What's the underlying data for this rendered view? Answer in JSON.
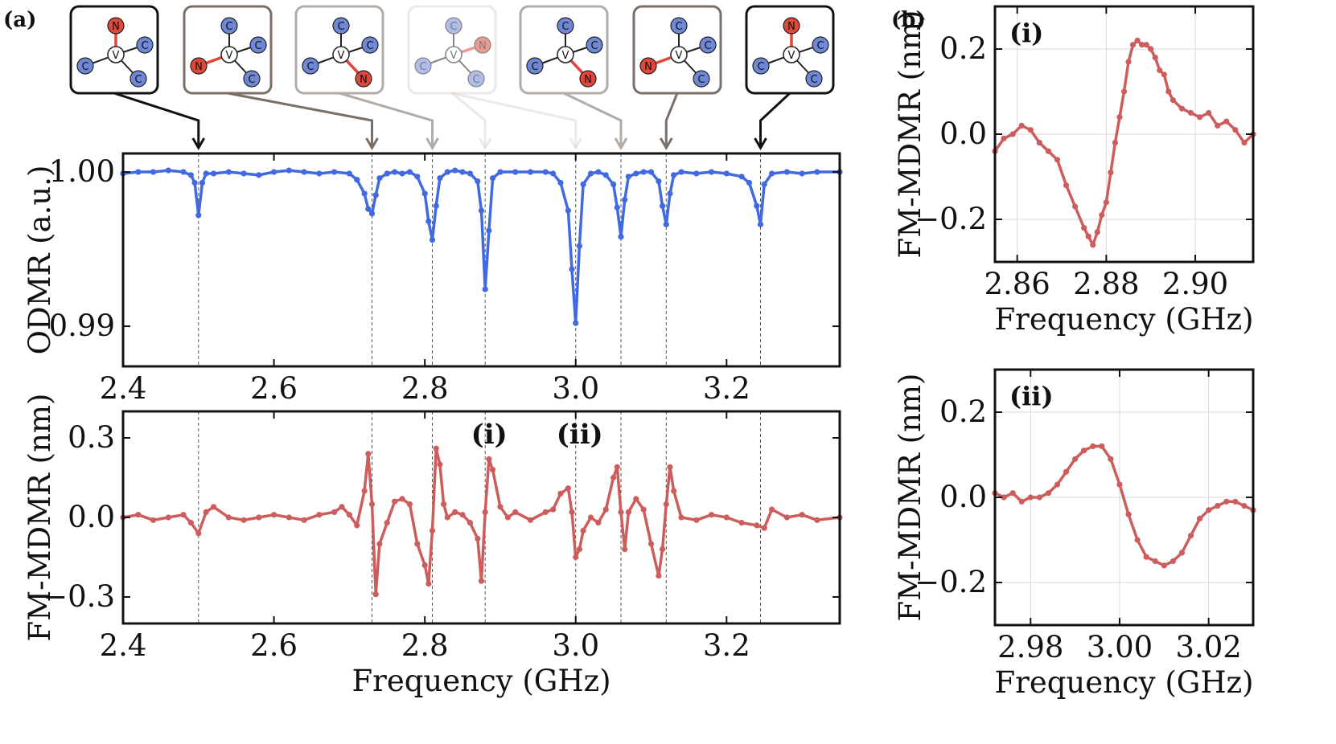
{
  "panel_labels": {
    "a": "(a)",
    "b": "(b)"
  },
  "peak_labels": [
    "(i)",
    "(ii)"
  ],
  "colors": {
    "odmr": "#4169e1",
    "mdmr": "#cd5c5c",
    "axes": "#111111",
    "grid": "#d9d9d9",
    "carbon_atom": "#6f88d6",
    "nitrogen_atom": "#e0463a",
    "vacancy_atom": "#ffffff"
  },
  "nv_orientation_boxes": [
    {
      "n_position": "top",
      "frame_color": "#111111",
      "fill": "#ffffff",
      "opacity": 1.0
    },
    {
      "n_position": "left",
      "frame_color": "#7a6e66",
      "fill": "#ffffff",
      "opacity": 1.0
    },
    {
      "n_position": "bottom-right",
      "frame_color": "#b3aba5",
      "fill": "#ffffff",
      "opacity": 1.0
    },
    {
      "n_position": "right",
      "frame_color": "#dcd7d3",
      "fill": "#ffffff",
      "opacity": 0.55
    },
    {
      "n_position": "bottom-right",
      "frame_color": "#b3aba5",
      "fill": "#ffffff",
      "opacity": 1.0
    },
    {
      "n_position": "left",
      "frame_color": "#7a6e66",
      "fill": "#ffffff",
      "opacity": 1.0
    },
    {
      "n_position": "top",
      "frame_color": "#111111",
      "fill": "#ffffff",
      "opacity": 1.0
    }
  ],
  "atom_labels": {
    "carbon": "C",
    "nitrogen": "N",
    "vacancy": "V"
  },
  "chart_data": [
    {
      "id": "odmr",
      "type": "line",
      "title": "",
      "xlabel": "",
      "ylabel": "ODMR (a.u.)",
      "xlim": [
        2.4,
        3.35
      ],
      "ylim": [
        0.9874,
        1.0012
      ],
      "xticks": [
        2.4,
        2.6,
        2.8,
        3.0,
        3.2
      ],
      "xtick_labels": [
        "2.4",
        "2.6",
        "2.8",
        "3.0",
        "3.2"
      ],
      "yticks": [
        0.99,
        1.0
      ],
      "ytick_labels": [
        "0.99",
        "1.00"
      ],
      "grid": false,
      "resonance_lines_GHz": [
        2.5,
        2.73,
        2.81,
        2.88,
        3.0,
        3.06,
        3.12,
        3.245
      ],
      "series": [
        {
          "color": "#4169e1",
          "markers": true,
          "x": [
            2.4,
            2.42,
            2.44,
            2.46,
            2.48,
            2.49,
            2.495,
            2.5,
            2.505,
            2.51,
            2.52,
            2.54,
            2.56,
            2.58,
            2.6,
            2.62,
            2.64,
            2.66,
            2.68,
            2.7,
            2.71,
            2.72,
            2.725,
            2.73,
            2.735,
            2.74,
            2.75,
            2.76,
            2.77,
            2.78,
            2.79,
            2.8,
            2.805,
            2.81,
            2.815,
            2.82,
            2.83,
            2.84,
            2.85,
            2.86,
            2.87,
            2.875,
            2.88,
            2.885,
            2.89,
            2.9,
            2.92,
            2.94,
            2.96,
            2.97,
            2.98,
            2.99,
            2.995,
            3.0,
            3.005,
            3.01,
            3.02,
            3.03,
            3.04,
            3.05,
            3.055,
            3.06,
            3.065,
            3.07,
            3.08,
            3.09,
            3.1,
            3.11,
            3.115,
            3.12,
            3.125,
            3.13,
            3.14,
            3.16,
            3.18,
            3.2,
            3.22,
            3.23,
            3.24,
            3.245,
            3.25,
            3.26,
            3.28,
            3.3,
            3.32,
            3.35
          ],
          "y": [
            0.9999,
            1.0,
            1.0,
            1.0001,
            1.0,
            0.9998,
            0.9993,
            0.9972,
            0.9993,
            0.9999,
            0.9999,
            1.0,
            0.9999,
            0.9998,
            1.0,
            1.0001,
            1.0,
            0.9999,
            1.0,
            0.9999,
            0.9995,
            0.9986,
            0.9976,
            0.9973,
            0.9985,
            0.9996,
            0.9999,
            1.0,
            0.9999,
            1.0,
            0.9997,
            0.9986,
            0.9968,
            0.9956,
            0.9978,
            0.9996,
            1.0,
            1.0001,
            1.0,
            0.9999,
            0.9994,
            0.9975,
            0.9924,
            0.9962,
            0.9996,
            1.0,
            1.0,
            1.0,
            1.0,
            0.9999,
            0.9993,
            0.9975,
            0.9937,
            0.9902,
            0.9952,
            0.9992,
            0.9999,
            1.0,
            0.9998,
            0.9992,
            0.9977,
            0.9958,
            0.9982,
            0.9997,
            0.9999,
            1.0,
            1.0,
            0.9994,
            0.9978,
            0.9966,
            0.9986,
            0.9998,
            1.0,
            0.9999,
            1.0,
            0.9999,
            0.9997,
            0.9993,
            0.9978,
            0.9966,
            0.9992,
            0.9999,
            1.0,
            0.9999,
            1.0,
            1.0
          ]
        }
      ]
    },
    {
      "id": "fm-mdmr",
      "type": "line",
      "title": "",
      "xlabel": "Frequency (GHz)",
      "ylabel": "FM-MDMR (nm)",
      "xlim": [
        2.4,
        3.35
      ],
      "ylim": [
        -0.4,
        0.4
      ],
      "xticks": [
        2.4,
        2.6,
        2.8,
        3.0,
        3.2
      ],
      "xtick_labels": [
        "2.4",
        "2.6",
        "2.8",
        "3.0",
        "3.2"
      ],
      "yticks": [
        -0.3,
        0.0,
        0.3
      ],
      "ytick_labels": [
        "−0.3",
        "0.0",
        "0.3"
      ],
      "grid": false,
      "annotations": [
        {
          "text": "(i)",
          "x": 2.88
        },
        {
          "text": "(ii)",
          "x": 3.0
        }
      ],
      "resonance_lines_GHz": [
        2.5,
        2.73,
        2.81,
        2.88,
        3.0,
        3.06,
        3.12,
        3.245
      ],
      "series": [
        {
          "color": "#cd5c5c",
          "markers": true,
          "x": [
            2.4,
            2.42,
            2.44,
            2.46,
            2.48,
            2.49,
            2.5,
            2.51,
            2.52,
            2.54,
            2.56,
            2.58,
            2.6,
            2.62,
            2.64,
            2.66,
            2.68,
            2.69,
            2.7,
            2.71,
            2.72,
            2.725,
            2.73,
            2.735,
            2.74,
            2.75,
            2.76,
            2.77,
            2.78,
            2.79,
            2.8,
            2.805,
            2.81,
            2.815,
            2.82,
            2.825,
            2.83,
            2.84,
            2.85,
            2.86,
            2.87,
            2.875,
            2.88,
            2.885,
            2.89,
            2.9,
            2.91,
            2.92,
            2.94,
            2.96,
            2.97,
            2.98,
            2.99,
            2.995,
            3.0,
            3.005,
            3.01,
            3.02,
            3.03,
            3.04,
            3.05,
            3.055,
            3.06,
            3.065,
            3.07,
            3.08,
            3.09,
            3.1,
            3.11,
            3.115,
            3.12,
            3.125,
            3.13,
            3.14,
            3.16,
            3.18,
            3.2,
            3.22,
            3.24,
            3.25,
            3.26,
            3.28,
            3.3,
            3.32,
            3.35
          ],
          "y": [
            0.0,
            0.01,
            -0.01,
            0.0,
            0.01,
            -0.02,
            -0.06,
            0.02,
            0.04,
            0.0,
            -0.01,
            0.0,
            0.01,
            0.0,
            -0.01,
            0.01,
            0.02,
            0.04,
            0.01,
            -0.03,
            0.1,
            0.24,
            0.05,
            -0.29,
            -0.1,
            -0.02,
            0.06,
            0.07,
            0.05,
            -0.1,
            -0.18,
            -0.25,
            -0.05,
            0.26,
            0.2,
            0.05,
            0.0,
            0.02,
            0.01,
            -0.02,
            -0.08,
            -0.24,
            0.02,
            0.22,
            0.18,
            0.04,
            0.0,
            0.02,
            -0.01,
            0.02,
            0.03,
            0.09,
            0.11,
            0.02,
            -0.15,
            -0.12,
            -0.05,
            0.0,
            -0.02,
            0.03,
            0.15,
            0.19,
            0.02,
            -0.12,
            0.02,
            0.07,
            0.03,
            -0.1,
            -0.22,
            -0.12,
            0.05,
            0.19,
            0.1,
            0.0,
            -0.01,
            0.01,
            0.0,
            -0.02,
            -0.03,
            -0.04,
            0.03,
            0.0,
            0.01,
            -0.01,
            0.0
          ]
        }
      ]
    },
    {
      "id": "inset-i",
      "type": "line",
      "title": "",
      "label": "(i)",
      "xlabel": "Frequency (GHz)",
      "ylabel": "FM-MDMR (nm)",
      "xlim": [
        2.855,
        2.913
      ],
      "ylim": [
        -0.3,
        0.3
      ],
      "xticks": [
        2.86,
        2.88,
        2.9
      ],
      "xtick_labels": [
        "2.86",
        "2.88",
        "2.90"
      ],
      "yticks": [
        -0.2,
        0.0,
        0.2
      ],
      "ytick_labels": [
        "−0.2",
        "0.0",
        "0.2"
      ],
      "grid": true,
      "series": [
        {
          "color": "#cd5c5c",
          "markers": true,
          "x": [
            2.855,
            2.857,
            2.859,
            2.861,
            2.863,
            2.865,
            2.867,
            2.869,
            2.871,
            2.873,
            2.875,
            2.876,
            2.877,
            2.878,
            2.879,
            2.88,
            2.881,
            2.882,
            2.883,
            2.884,
            2.885,
            2.886,
            2.887,
            2.888,
            2.889,
            2.89,
            2.891,
            2.892,
            2.893,
            2.894,
            2.895,
            2.897,
            2.899,
            2.901,
            2.903,
            2.905,
            2.907,
            2.909,
            2.911,
            2.913
          ],
          "y": [
            -0.04,
            -0.01,
            0.0,
            0.02,
            0.01,
            -0.02,
            -0.04,
            -0.06,
            -0.12,
            -0.17,
            -0.22,
            -0.24,
            -0.26,
            -0.23,
            -0.19,
            -0.16,
            -0.09,
            -0.02,
            0.04,
            0.1,
            0.17,
            0.21,
            0.22,
            0.21,
            0.21,
            0.2,
            0.18,
            0.15,
            0.14,
            0.1,
            0.08,
            0.06,
            0.05,
            0.04,
            0.05,
            0.02,
            0.03,
            0.01,
            -0.02,
            0.0
          ]
        }
      ]
    },
    {
      "id": "inset-ii",
      "type": "line",
      "title": "",
      "label": "(ii)",
      "xlabel": "Frequency (GHz)",
      "ylabel": "FM-MDMR (nm)",
      "xlim": [
        2.972,
        3.03
      ],
      "ylim": [
        -0.3,
        0.3
      ],
      "xticks": [
        2.98,
        3.0,
        3.02
      ],
      "xtick_labels": [
        "2.98",
        "3.00",
        "3.02"
      ],
      "yticks": [
        -0.2,
        0.0,
        0.2
      ],
      "ytick_labels": [
        "−0.2",
        "0.0",
        "0.2"
      ],
      "grid": true,
      "series": [
        {
          "color": "#cd5c5c",
          "markers": true,
          "x": [
            2.972,
            2.974,
            2.976,
            2.978,
            2.98,
            2.982,
            2.984,
            2.986,
            2.988,
            2.99,
            2.992,
            2.994,
            2.996,
            2.998,
            3.0,
            3.002,
            3.004,
            3.006,
            3.008,
            3.01,
            3.012,
            3.014,
            3.016,
            3.018,
            3.02,
            3.022,
            3.024,
            3.026,
            3.028,
            3.03
          ],
          "y": [
            0.01,
            0.0,
            0.01,
            -0.01,
            0.0,
            0.0,
            0.01,
            0.03,
            0.06,
            0.09,
            0.11,
            0.12,
            0.12,
            0.09,
            0.03,
            -0.04,
            -0.1,
            -0.14,
            -0.15,
            -0.16,
            -0.15,
            -0.13,
            -0.09,
            -0.05,
            -0.03,
            -0.02,
            -0.01,
            -0.01,
            -0.02,
            -0.03
          ]
        }
      ]
    }
  ]
}
